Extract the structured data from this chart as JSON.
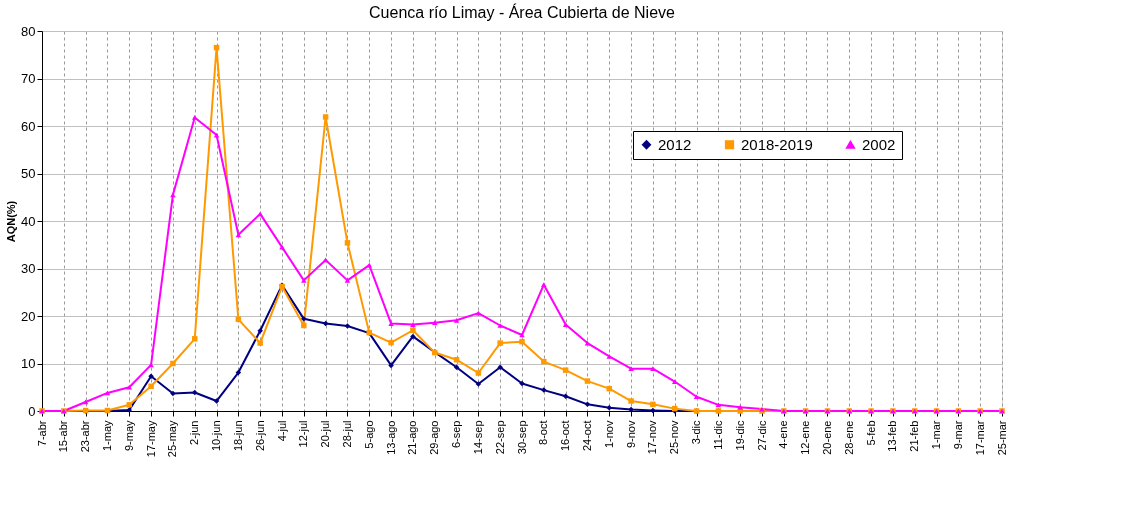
{
  "chart_data": {
    "type": "line",
    "title": "Cuenca río Limay   -   Área Cubierta de Nieve",
    "ylabel": "AQN(%)",
    "categories": [
      "7-abr",
      "15-abr",
      "23-abr",
      "1-may",
      "9-may",
      "17-may",
      "25-may",
      "2-jun",
      "10-jun",
      "18-jun",
      "26-jun",
      "4-jul",
      "12-jul",
      "20-jul",
      "28-jul",
      "5-ago",
      "13-ago",
      "21-ago",
      "29-ago",
      "6-sep",
      "14-sep",
      "22-sep",
      "30-sep",
      "8-oct",
      "16-oct",
      "24-oct",
      "1-nov",
      "9-nov",
      "17-nov",
      "25-nov",
      "3-dic",
      "11-dic",
      "19-dic",
      "27-dic",
      "4-ene",
      "12-ene",
      "20-ene",
      "28-ene",
      "5-feb",
      "13-feb",
      "21-feb",
      "1-mar",
      "9-mar",
      "17-mar",
      "25-mar"
    ],
    "series": [
      {
        "name": "2012",
        "color": "#000080",
        "marker": "diamond",
        "values": [
          null,
          null,
          0,
          0,
          0.2,
          7.3,
          3.7,
          3.9,
          2.1,
          8.1,
          16.9,
          26.5,
          19.4,
          18.4,
          17.9,
          16.4,
          9.6,
          15.7,
          12.4,
          9.2,
          5.7,
          9.2,
          5.8,
          4.4,
          3.1,
          1.4,
          0.7,
          0.3,
          0.1,
          0,
          0,
          0,
          null,
          null,
          null,
          null,
          null,
          null,
          null,
          null,
          null,
          null,
          null,
          null,
          null
        ]
      },
      {
        "name": "2018-2019",
        "color": "#ff9900",
        "marker": "square",
        "values": [
          0,
          0,
          0.1,
          0.1,
          1.3,
          5.2,
          10,
          15.2,
          76.5,
          19.3,
          14.3,
          26.2,
          18.0,
          61.9,
          35.4,
          16.5,
          14.4,
          17.0,
          12.3,
          10.8,
          8.0,
          14.3,
          14.6,
          10.4,
          8.6,
          6.3,
          4.7,
          2.1,
          1.4,
          0.5,
          0,
          0,
          0,
          0,
          0,
          0,
          0,
          0,
          0,
          0,
          0,
          0,
          0,
          0,
          0
        ]
      },
      {
        "name": "2002",
        "color": "#ff00ff",
        "marker": "triangle",
        "values": [
          0,
          0,
          1.9,
          3.8,
          5.0,
          9.7,
          45.5,
          61.8,
          58.1,
          37.1,
          41.5,
          34.5,
          27.5,
          31.8,
          27.5,
          30.7,
          18.4,
          18.2,
          18.6,
          19.1,
          20.6,
          18.0,
          16.0,
          26.6,
          18.2,
          14.3,
          11.5,
          8.9,
          8.9,
          6.2,
          3.0,
          1.3,
          0.8,
          0.4,
          0,
          0,
          0,
          0,
          0,
          0,
          0,
          0,
          0,
          0,
          0
        ]
      }
    ],
    "ylim": [
      0,
      80
    ],
    "yticks": [
      0,
      10,
      20,
      30,
      40,
      50,
      60,
      70,
      80
    ],
    "grid": true,
    "legend": "top right",
    "line_style": "solid"
  }
}
